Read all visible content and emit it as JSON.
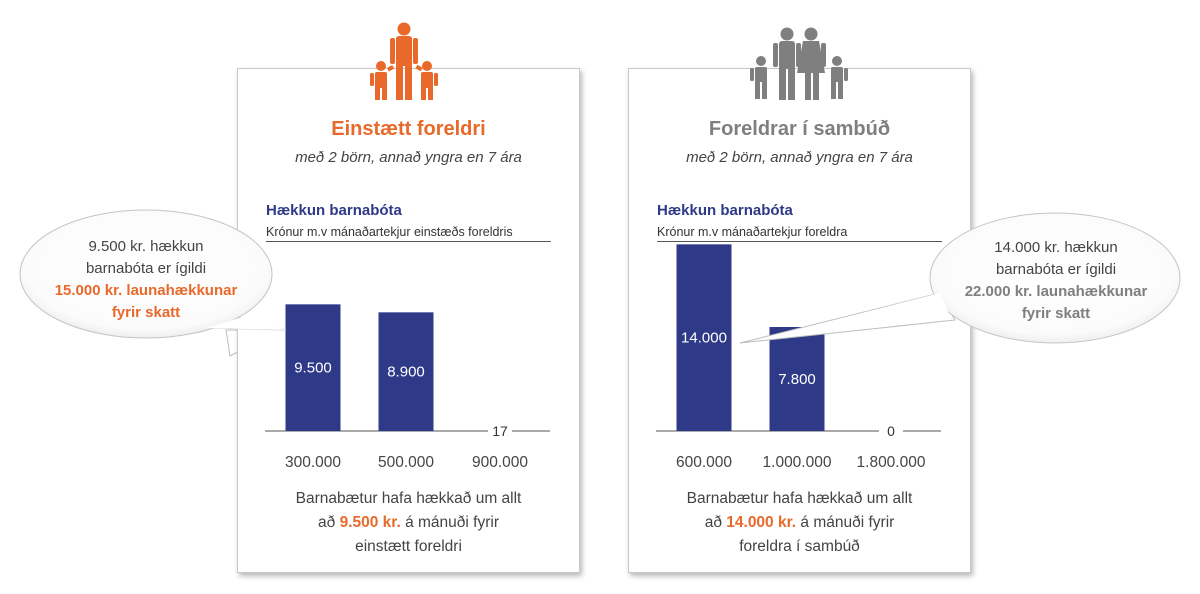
{
  "colors": {
    "orange": "#e8692a",
    "gray": "#7f7f7f",
    "navy": "#2e3a87"
  },
  "left": {
    "icon": "single-parent-family-icon",
    "title": "Einstætt foreldri",
    "subtitle": "með 2 börn, annað yngra en 7 ára",
    "chart_title": "Hækkun barnabóta",
    "chart_subtitle": "Krónur m.v mánaðartekjur einstæðs foreldris",
    "bubble": {
      "line1": "9.500 kr. hækkun",
      "line2": "barnabóta er ígildi",
      "line3": "15.000 kr. launahækkunar",
      "line4": "fyrir skatt"
    },
    "footer": {
      "line1": "Barnabætur hafa hækkað um allt",
      "pre": "að ",
      "amount": "9.500 kr.",
      "post": " á mánuði fyrir",
      "line3": "einstætt foreldri"
    }
  },
  "right": {
    "icon": "two-parent-family-icon",
    "title": "Foreldrar í sambúð",
    "subtitle": "með 2 börn, annað yngra en 7 ára",
    "chart_title": "Hækkun barnabóta",
    "chart_subtitle": "Krónur m.v mánaðartekjur foreldra",
    "bubble": {
      "line1": "14.000 kr. hækkun",
      "line2": "barnabóta er ígildi",
      "line3": "22.000 kr. launahækkunar",
      "line4": "fyrir skatt"
    },
    "footer": {
      "line1": "Barnabætur hafa hækkað um allt",
      "pre": "að ",
      "amount": "14.000 kr.",
      "post": " á mánuði fyrir",
      "line3": "foreldra í sambúð"
    }
  },
  "chart_data": [
    {
      "type": "bar",
      "title": "Hækkun barnabóta",
      "subtitle": "Krónur m.v mánaðartekjur einstæðs foreldris",
      "categories": [
        "300.000",
        "500.000",
        "900.000"
      ],
      "values": [
        9500,
        8900,
        17
      ],
      "value_labels": [
        "9.500",
        "8.900",
        "17"
      ],
      "ylim": [
        0,
        15000
      ],
      "color": "#2e3a87",
      "grid": false
    },
    {
      "type": "bar",
      "title": "Hækkun barnabóta",
      "subtitle": "Krónur m.v mánaðartekjur foreldra",
      "categories": [
        "600.000",
        "1.000.000",
        "1.800.000"
      ],
      "values": [
        14000,
        7800,
        0
      ],
      "value_labels": [
        "14.000",
        "7.800",
        "0"
      ],
      "ylim": [
        0,
        15000
      ],
      "color": "#2e3a87",
      "grid": false
    }
  ]
}
